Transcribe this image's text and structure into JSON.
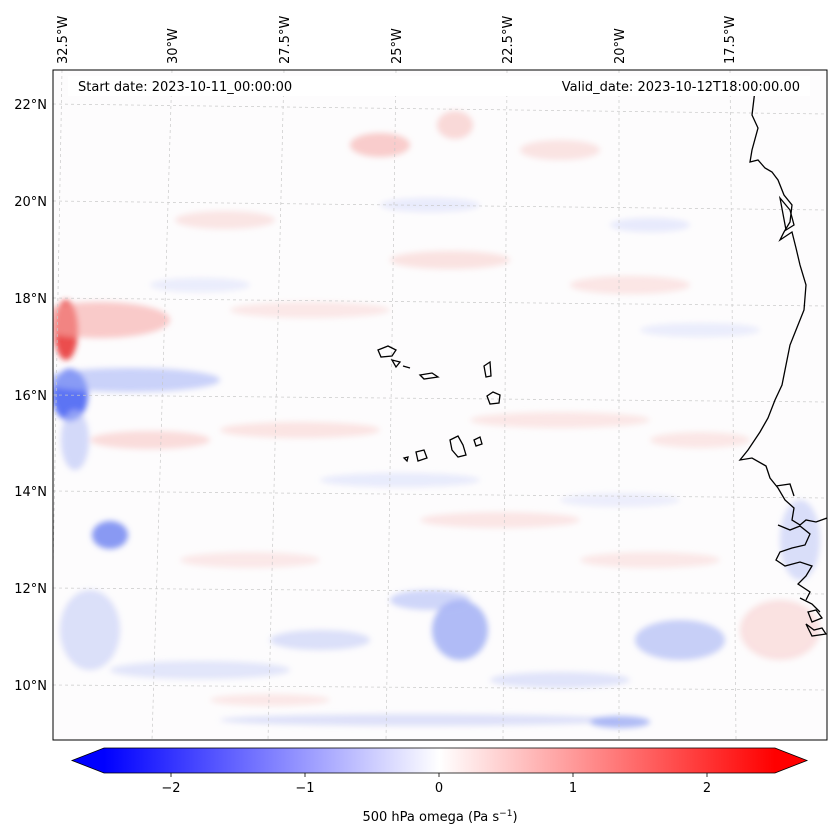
{
  "header": {
    "start_date": "Start date: 2023-10-11_00:00:00",
    "valid_date": "Valid_date: 2023-10-12T18:00:00.00"
  },
  "longitude_labels": [
    "32.5°W",
    "30°W",
    "27.5°W",
    "25°W",
    "22.5°W",
    "20°W",
    "17.5°W"
  ],
  "latitude_labels": [
    "22°N",
    "20°N",
    "18°N",
    "16°N",
    "14°N",
    "12°N",
    "10°N"
  ],
  "colorbar": {
    "ticks": [
      "−2",
      "−1",
      "0",
      "1",
      "2"
    ],
    "label_main": "500 hPa omega (Pa s",
    "label_sup": "−1",
    "label_end": ")",
    "min": -2.6,
    "max": 2.6,
    "extend": "both"
  },
  "colors": {
    "negative": "#0000ff",
    "neutral": "#ffffff",
    "positive": "#ff0000",
    "coastline": "#000000",
    "gridline": "#c8c8c8"
  },
  "extent": {
    "lon_min": -33.0,
    "lon_max": -15.5,
    "lat_min": 8.8,
    "lat_max": 22.8
  }
}
